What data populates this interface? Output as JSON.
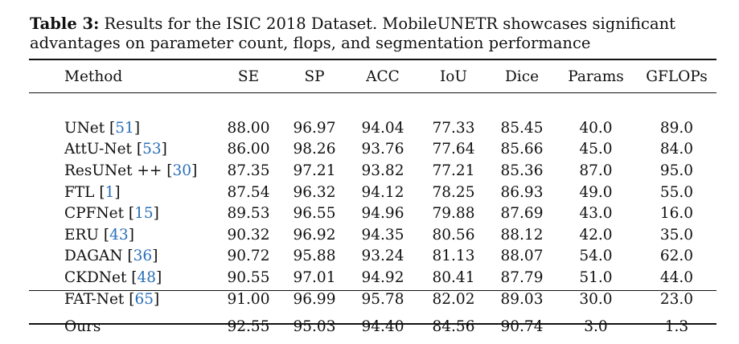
{
  "caption": {
    "label": "Table 3:",
    "text": " Results for the ISIC 2018 Dataset. MobileUNETR showcases significant advantages on parameter count, flops, and segmentation performance"
  },
  "table": {
    "headers": [
      "Method",
      "SE",
      "SP",
      "ACC",
      "IoU",
      "Dice",
      "Params",
      "GFLOPs"
    ],
    "rows": [
      {
        "method": "UNet",
        "ref": "51",
        "values": [
          "88.00",
          "96.97",
          "94.04",
          "77.33",
          "85.45",
          "40.0",
          "89.0"
        ]
      },
      {
        "method": "AttU-Net",
        "ref": "53",
        "values": [
          "86.00",
          "98.26",
          "93.76",
          "77.64",
          "85.66",
          "45.0",
          "84.0"
        ]
      },
      {
        "method": "ResUNet ++",
        "ref": "30",
        "values": [
          "87.35",
          "97.21",
          "93.82",
          "77.21",
          "85.36",
          "87.0",
          "95.0"
        ]
      },
      {
        "method": "FTL",
        "ref": "1",
        "values": [
          "87.54",
          "96.32",
          "94.12",
          "78.25",
          "86.93",
          "49.0",
          "55.0"
        ]
      },
      {
        "method": "CPFNet",
        "ref": "15",
        "values": [
          "89.53",
          "96.55",
          "94.96",
          "79.88",
          "87.69",
          "43.0",
          "16.0"
        ]
      },
      {
        "method": "ERU",
        "ref": "43",
        "values": [
          "90.32",
          "96.92",
          "94.35",
          "80.56",
          "88.12",
          "42.0",
          "35.0"
        ]
      },
      {
        "method": "DAGAN",
        "ref": "36",
        "values": [
          "90.72",
          "95.88",
          "93.24",
          "81.13",
          "88.07",
          "54.0",
          "62.0"
        ]
      },
      {
        "method": "CKDNet",
        "ref": "48",
        "values": [
          "90.55",
          "97.01",
          "94.92",
          "80.41",
          "87.79",
          "51.0",
          "44.0"
        ]
      },
      {
        "method": "FAT-Net",
        "ref": "65",
        "values": [
          "91.00",
          "96.99",
          "95.78",
          "82.02",
          "89.03",
          "30.0",
          "23.0"
        ]
      }
    ],
    "ours": {
      "method": "Ours",
      "values": [
        "92.55",
        "95.03",
        "94.40",
        "84.56",
        "90.74",
        "3.0",
        "1.3"
      ]
    }
  }
}
